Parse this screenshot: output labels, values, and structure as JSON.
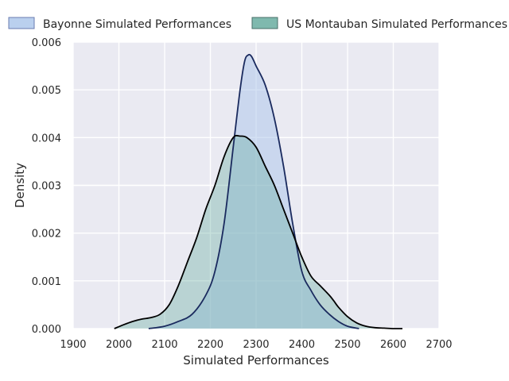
{
  "chart_data": {
    "type": "area",
    "xlabel": "Simulated Performances",
    "ylabel": "Density",
    "xlim": [
      1900,
      2700
    ],
    "ylim": [
      0,
      0.006
    ],
    "xticks": [
      1900,
      2000,
      2100,
      2200,
      2300,
      2400,
      2500,
      2600,
      2700
    ],
    "xtick_labels": [
      "1900",
      "2000",
      "2100",
      "2200",
      "2300",
      "2400",
      "2500",
      "2600",
      "2700"
    ],
    "yticks": [
      0,
      0.001,
      0.002,
      0.003,
      0.004,
      0.005,
      0.006
    ],
    "ytick_labels": [
      "0.000",
      "0.001",
      "0.002",
      "0.003",
      "0.004",
      "0.005",
      "0.006"
    ],
    "grid": true,
    "legend_position": "top, outside",
    "series": [
      {
        "name": "Bayonne Simulated Performances",
        "fill_color": "#a9c4ea",
        "line_color": "#1a2a5e",
        "x": [
          2065,
          2100,
          2130,
          2160,
          2190,
          2210,
          2230,
          2250,
          2265,
          2275,
          2283,
          2290,
          2300,
          2320,
          2340,
          2360,
          2380,
          2400,
          2420,
          2440,
          2460,
          2480,
          2500,
          2525
        ],
        "y": [
          0,
          5e-05,
          0.00015,
          0.0003,
          0.0007,
          0.0012,
          0.0022,
          0.0038,
          0.005,
          0.0056,
          0.00573,
          0.0057,
          0.0055,
          0.0051,
          0.0044,
          0.0034,
          0.0022,
          0.0012,
          0.0008,
          0.0005,
          0.0003,
          0.00015,
          5e-05,
          0
        ]
      },
      {
        "name": "US Montauban Simulated Performances",
        "fill_color": "#5fa89a",
        "line_color": "#000000",
        "x": [
          1990,
          2010,
          2030,
          2050,
          2070,
          2090,
          2110,
          2130,
          2150,
          2170,
          2190,
          2210,
          2230,
          2250,
          2265,
          2280,
          2300,
          2320,
          2340,
          2360,
          2380,
          2400,
          2420,
          2440,
          2460,
          2470,
          2480,
          2500,
          2520,
          2540,
          2560,
          2580,
          2600,
          2620
        ],
        "y": [
          0,
          8e-05,
          0.00015,
          0.0002,
          0.00023,
          0.0003,
          0.0005,
          0.0009,
          0.0014,
          0.0019,
          0.0025,
          0.003,
          0.0036,
          0.004,
          0.00403,
          0.004,
          0.0038,
          0.0034,
          0.003,
          0.0025,
          0.002,
          0.0015,
          0.0011,
          0.0009,
          0.0007,
          0.00058,
          0.00045,
          0.00025,
          0.00012,
          5e-05,
          2e-05,
          1e-05,
          0,
          0
        ]
      }
    ]
  }
}
